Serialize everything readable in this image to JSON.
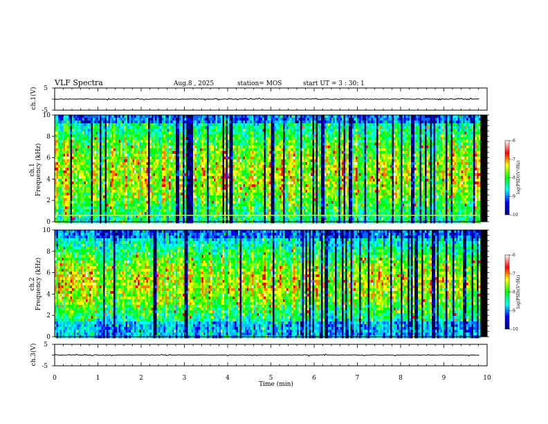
{
  "chart_data": {
    "type": "heatmap",
    "title": "VLF Spectra",
    "date": "Aug.8 , 2025",
    "station": "station= MOS",
    "start": "start UT = 3 : 30: 1",
    "xlabel": "Time (min)",
    "x_ticks": [
      "0",
      "1",
      "2",
      "3",
      "4",
      "5",
      "6",
      "7",
      "8",
      "9",
      "10"
    ],
    "xlim": [
      0,
      10
    ],
    "data_end_min": 9.83,
    "waveform_top": {
      "ylabel": "ch.1(V)",
      "yticks": [
        "5",
        "-5"
      ],
      "ylim": [
        -5,
        5
      ],
      "baseline": 0
    },
    "waveform_bottom": {
      "ylabel": "ch.3(V)",
      "yticks": [
        "5",
        "-5"
      ],
      "ylim": [
        -5,
        5
      ],
      "baseline": 0
    },
    "spectrograms": [
      {
        "ylabel": "ch.1",
        "ylabel2": "Frequency (kHz)",
        "yticks": [
          "0",
          "2",
          "4",
          "6",
          "8",
          "10"
        ],
        "ylim": [
          0,
          10
        ],
        "band_khz": 0.6
      },
      {
        "ylabel": "ch.2",
        "ylabel2": "Frequency (kHz)",
        "yticks": [
          "0",
          "2",
          "4",
          "6",
          "8",
          "10"
        ],
        "ylim": [
          0,
          10
        ],
        "band_khz": 0
      }
    ],
    "colorbar": {
      "label": "log(PSD)(V²/Hz)",
      "ticks": [
        "-6",
        "-7",
        "-8",
        "-9",
        "-10"
      ],
      "range": [
        -10,
        -6
      ],
      "colors": [
        "#000080",
        "#0000ff",
        "#00ffff",
        "#00ff00",
        "#ffff00",
        "#ff0000",
        "#ffffff"
      ]
    }
  }
}
